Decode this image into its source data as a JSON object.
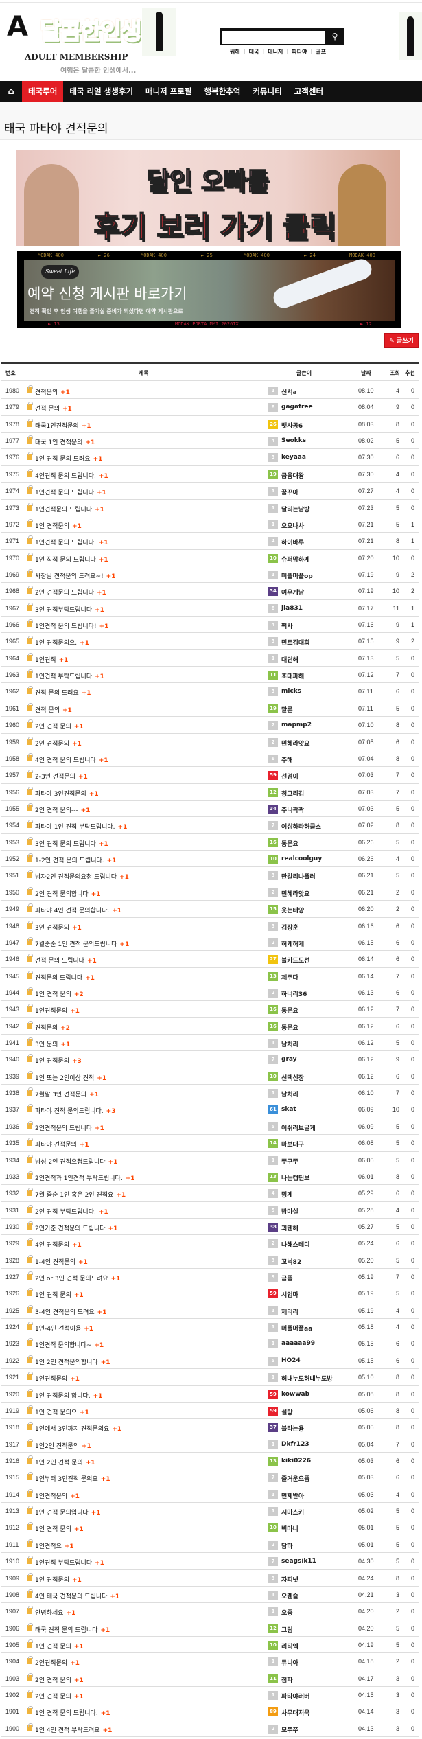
{
  "logo": {
    "mark": "A",
    "title": "달콤한인생",
    "subtitle": "ADULT MEMBERSHIP",
    "slogan": "여행은 달콤한 인생에서..."
  },
  "search": {
    "value": "",
    "placeholder": "",
    "icon": "search-icon",
    "links": [
      "뭐해",
      "태국",
      "매니저",
      "파타야",
      "골프"
    ]
  },
  "nav": {
    "home_icon": "home-icon",
    "items": [
      "태국투어",
      "태국 리얼 생생후기",
      "매니저 프로필",
      "행복한추억",
      "커뮤니티",
      "고객센터"
    ],
    "active": 0
  },
  "page_title": "태국 파타야 견적문의",
  "banner1": {
    "line1": "달인 오빠들",
    "line2": "후기 보러 가기 클릭"
  },
  "banner2": {
    "logo": "Sweet Life",
    "title": "예약 신청 게시판 바로가기",
    "subtitle": "견적 확인 후 인생 여행을 즐기실 준비가 되셨다면 예약 게시판으로",
    "film_top": [
      "MODAK 400",
      "► 26",
      "MODAK 400",
      "► 25",
      "MODAK 400",
      "► 24",
      "MODAK 400"
    ],
    "film_bottom": [
      "► 13",
      "MODAK PORTA MMI 2026TX",
      "► 12"
    ]
  },
  "write_button": "✎ 글쓰기",
  "table": {
    "headers": [
      "번호",
      "제목",
      "글쓴이",
      "날짜",
      "조회",
      "추천"
    ],
    "level_colors": {
      "default": "#cccccc",
      "green": "#8bc34a",
      "yellow": "#f1c40f",
      "purple": "#5b3f86",
      "red": "#e8222d",
      "blue": "#3a8fd9",
      "orange": "#f39c12"
    },
    "rows": [
      [
        "1980",
        "견적문의",
        "+1",
        "1",
        "신서a",
        "08.10",
        "4",
        "0"
      ],
      [
        "1979",
        "견적 문의",
        "+1",
        "8",
        "gagafree",
        "08.04",
        "9",
        "0"
      ],
      [
        "1978",
        "태국1인견적문의",
        "+1",
        "26",
        "뱃사공6",
        "08.03",
        "8",
        "0"
      ],
      [
        "1977",
        "태국 1인 견적문의",
        "+1",
        "4",
        "Seokks",
        "08.02",
        "5",
        "0"
      ],
      [
        "1976",
        "1인 견적 문의 드려요",
        "+1",
        "3",
        "keyaaa",
        "07.30",
        "6",
        "0"
      ],
      [
        "1975",
        "4인견적 문의 드립니다.",
        "+1",
        "19",
        "금융대왕",
        "07.30",
        "4",
        "0"
      ],
      [
        "1974",
        "1인견적 문의 드립니다",
        "+1",
        "1",
        "꿈꾸아",
        "07.27",
        "4",
        "0"
      ],
      [
        "1973",
        "1인견적문의 드립니다",
        "+1",
        "1",
        "달리는남방",
        "07.23",
        "5",
        "0"
      ],
      [
        "1972",
        "1인 견적문의",
        "+1",
        "1",
        "으으나사",
        "07.21",
        "5",
        "1"
      ],
      [
        "1971",
        "1인견적 문의 드립니다.",
        "+1",
        "4",
        "하이바루",
        "07.21",
        "8",
        "1"
      ],
      [
        "1970",
        "1인 직적 문의 드립니다",
        "+1",
        "10",
        "슈퍼맘하게",
        "07.20",
        "10",
        "0"
      ],
      [
        "1969",
        "사장님 견적문의 드려요~!",
        "+1",
        "1",
        "머플머플op",
        "07.19",
        "9",
        "2"
      ],
      [
        "1968",
        "2인 견적문의 드립니다",
        "+1",
        "34",
        "여우게남",
        "07.19",
        "10",
        "2"
      ],
      [
        "1967",
        "3인 견적부탁드립니다",
        "+1",
        "8",
        "jia831",
        "07.17",
        "11",
        "1"
      ],
      [
        "1966",
        "1인견적 문의 드립니다!",
        "+1",
        "4",
        "퍽사",
        "07.16",
        "9",
        "1"
      ],
      [
        "1965",
        "1인 견적문의요.",
        "+1",
        "3",
        "민트김대회",
        "07.15",
        "9",
        "2"
      ],
      [
        "1964",
        "1인견적",
        "+1",
        "1",
        "대던해",
        "07.13",
        "5",
        "0"
      ],
      [
        "1963",
        "1인견적 부탁드립니다",
        "+1",
        "11",
        "초대파해",
        "07.12",
        "7",
        "0"
      ],
      [
        "1962",
        "견적 문의 드려요",
        "+1",
        "3",
        "micks",
        "07.11",
        "6",
        "0"
      ],
      [
        "1961",
        "견적 문의",
        "+1",
        "19",
        "말론",
        "07.11",
        "5",
        "0"
      ],
      [
        "1960",
        "2인 견적 문의",
        "+1",
        "2",
        "mapmp2",
        "07.10",
        "8",
        "0"
      ],
      [
        "1959",
        "2인 견적문의",
        "+1",
        "2",
        "민혜라앗요",
        "07.05",
        "6",
        "0"
      ],
      [
        "1958",
        "4인 견적 문의 드립니다",
        "+1",
        "6",
        "주해",
        "07.04",
        "8",
        "0"
      ],
      [
        "1957",
        "2-3인 견적문의",
        "+1",
        "59",
        "선검이",
        "07.03",
        "7",
        "0"
      ],
      [
        "1956",
        "파타야 3인견적문의",
        "+1",
        "12",
        "청그리김",
        "07.03",
        "7",
        "0"
      ],
      [
        "1955",
        "2인 견적 문의---",
        "+1",
        "34",
        "주니곽곽",
        "07.03",
        "5",
        "0"
      ],
      [
        "1954",
        "파타야 1인 견적 부탁드립니다.",
        "+1",
        "7",
        "여심하라허클스",
        "07.02",
        "8",
        "0"
      ],
      [
        "1953",
        "3인 견적 문의 드립니다",
        "+1",
        "16",
        "동문요",
        "06.26",
        "5",
        "0"
      ],
      [
        "1952",
        "1-2인 견적 문의 드립니다.",
        "+1",
        "10",
        "realcoolguy",
        "06.26",
        "4",
        "0"
      ],
      [
        "1951",
        "남자2인 견적문의요청 드립니다",
        "+1",
        "3",
        "만갈리나플러",
        "06.21",
        "5",
        "0"
      ],
      [
        "1950",
        "2인 견적 문의합니다",
        "+1",
        "2",
        "민혜라앗요",
        "06.21",
        "2",
        "0"
      ],
      [
        "1949",
        "파타야 4인 견적 문의합니다.",
        "+1",
        "15",
        "웃는태양",
        "06.20",
        "2",
        "0"
      ],
      [
        "1948",
        "3인 견적문의",
        "+1",
        "3",
        "김장훈",
        "06.16",
        "6",
        "0"
      ],
      [
        "1947",
        "7월중순 1인 견적 문의드립니다",
        "+1",
        "2",
        "허케허케",
        "06.15",
        "6",
        "0"
      ],
      [
        "1946",
        "견적 문의 드립니다",
        "+1",
        "27",
        "블카드도선",
        "06.14",
        "6",
        "0"
      ],
      [
        "1945",
        "견적문의 드립니다",
        "+1",
        "13",
        "제주다",
        "06.14",
        "7",
        "0"
      ],
      [
        "1944",
        "1인 견적 문의",
        "+2",
        "2",
        "하너리36",
        "06.13",
        "6",
        "0"
      ],
      [
        "1943",
        "1인견적문의",
        "+1",
        "16",
        "동문요",
        "06.12",
        "7",
        "0"
      ],
      [
        "1942",
        "견적문의",
        "+2",
        "16",
        "동문요",
        "06.12",
        "6",
        "0"
      ],
      [
        "1941",
        "3인 문의",
        "+1",
        "1",
        "남처리",
        "06.12",
        "5",
        "0"
      ],
      [
        "1940",
        "1인 견적문의",
        "+3",
        "7",
        "gray",
        "06.12",
        "9",
        "0"
      ],
      [
        "1939",
        "1인 또는 2인이상 견적",
        "+1",
        "10",
        "선택신장",
        "06.12",
        "6",
        "0"
      ],
      [
        "1938",
        "7월말 3인 견적문의",
        "+1",
        "1",
        "남처리",
        "06.10",
        "7",
        "0"
      ],
      [
        "1937",
        "파타야 견적 문의드립니다.",
        "+3",
        "61",
        "skat",
        "06.09",
        "10",
        "0"
      ],
      [
        "1936",
        "2인견적문의 드립니다",
        "+1",
        "5",
        "어쉬러브굴게",
        "06.09",
        "5",
        "0"
      ],
      [
        "1935",
        "파타야 견적문의",
        "+1",
        "14",
        "마보대구",
        "06.08",
        "5",
        "0"
      ],
      [
        "1934",
        "남성 2인 견적요청드립니다",
        "+1",
        "1",
        "쭈구쭈",
        "06.05",
        "5",
        "0"
      ],
      [
        "1933",
        "2인견적과 1인견적 부탁드립니다.",
        "+1",
        "13",
        "나는캡틴보",
        "06.01",
        "8",
        "0"
      ],
      [
        "1932",
        "7월 중순 1인 혹은 2인 견적요",
        "+1",
        "4",
        "밍게",
        "05.29",
        "6",
        "0"
      ],
      [
        "1931",
        "2인 견적 부탁드립니다.",
        "+1",
        "5",
        "밤마실",
        "05.28",
        "4",
        "0"
      ],
      [
        "1930",
        "2인기준 견적문의 드립니다",
        "+1",
        "38",
        "괴텐해",
        "05.27",
        "5",
        "0"
      ],
      [
        "1929",
        "4인 견적문의",
        "+1",
        "2",
        "나해스테디",
        "05.24",
        "6",
        "0"
      ],
      [
        "1928",
        "1-4인 견적문의",
        "+1",
        "3",
        "꼬닉82",
        "05.20",
        "5",
        "0"
      ],
      [
        "1927",
        "2인 or 3인 견적 문의드려요",
        "+1",
        "9",
        "금뜸",
        "05.19",
        "7",
        "0"
      ],
      [
        "1926",
        "1인 견적 문의",
        "+1",
        "59",
        "시엄마",
        "05.19",
        "5",
        "0"
      ],
      [
        "1925",
        "3-4인 견적문의 드려요",
        "+1",
        "1",
        "제리리",
        "05.19",
        "4",
        "0"
      ],
      [
        "1924",
        "1인-4인 견적이용",
        "+1",
        "1",
        "머플머플aa",
        "05.18",
        "4",
        "0"
      ],
      [
        "1923",
        "1인견적 문의합니다~",
        "+1",
        "1",
        "aaaaaa99",
        "05.15",
        "6",
        "0"
      ],
      [
        "1922",
        "1인 2인 견적문의합니다",
        "+1",
        "5",
        "HO24",
        "05.15",
        "6",
        "0"
      ],
      [
        "1921",
        "1인견적문의",
        "+1",
        "1",
        "허내누도허내누도방",
        "05.10",
        "8",
        "0"
      ],
      [
        "1920",
        "1인 견적문의 합니다.",
        "+1",
        "59",
        "kowwab",
        "05.08",
        "8",
        "0"
      ],
      [
        "1919",
        "1인 견적 문의요",
        "+1",
        "59",
        "설탕",
        "05.06",
        "8",
        "0"
      ],
      [
        "1918",
        "1인에서 3인까지 견적문의요",
        "+1",
        "37",
        "블타는용",
        "05.05",
        "8",
        "0"
      ],
      [
        "1917",
        "1인2인 견적문의",
        "+1",
        "1",
        "Dkfr123",
        "05.04",
        "7",
        "0"
      ],
      [
        "1916",
        "1인 2인 견적 문의",
        "+1",
        "13",
        "kiki0226",
        "05.03",
        "6",
        "0"
      ],
      [
        "1915",
        "1인부터 3인견적 문의요",
        "+1",
        "7",
        "즐거운으뜸",
        "05.03",
        "6",
        "0"
      ],
      [
        "1914",
        "1인견적문의",
        "+1",
        "1",
        "면제받아",
        "05.03",
        "4",
        "0"
      ],
      [
        "1913",
        "1인 견적 문의입니다",
        "+1",
        "1",
        "시마스키",
        "05.02",
        "5",
        "0"
      ],
      [
        "1912",
        "1인 견적 문의",
        "+1",
        "10",
        "빅마니",
        "05.01",
        "5",
        "0"
      ],
      [
        "1911",
        "1인견적요",
        "+1",
        "2",
        "담하",
        "05.01",
        "5",
        "0"
      ],
      [
        "1910",
        "1인견적 부탁드립니다",
        "+1",
        "7",
        "seagsik11",
        "04.30",
        "5",
        "0"
      ],
      [
        "1909",
        "1인 견적문의",
        "+1",
        "3",
        "자피넷",
        "04.24",
        "8",
        "0"
      ],
      [
        "1908",
        "4인 태국 견적문의 드립니다",
        "+1",
        "1",
        "오렌슬",
        "04.21",
        "3",
        "0"
      ],
      [
        "1907",
        "안녕하세요",
        "+1",
        "1",
        "오중",
        "04.20",
        "2",
        "0"
      ],
      [
        "1906",
        "태국 견적 문의 드립니다",
        "+1",
        "12",
        "그림",
        "04.20",
        "5",
        "0"
      ],
      [
        "1905",
        "1인 견적 문의",
        "+1",
        "10",
        "리티엑",
        "04.19",
        "5",
        "0"
      ],
      [
        "1904",
        "2인견적문의",
        "+1",
        "1",
        "듀니아",
        "04.18",
        "2",
        "0"
      ],
      [
        "1903",
        "2인 견적 문의",
        "+1",
        "11",
        "점파",
        "04.17",
        "3",
        "0"
      ],
      [
        "1902",
        "2인 견적 문의",
        "+1",
        "1",
        "파타야러버",
        "04.15",
        "3",
        "0"
      ],
      [
        "1901",
        "1인 견적 문의 드립니다.",
        "+1",
        "89",
        "사무대저욱",
        "04.14",
        "3",
        "0"
      ],
      [
        "1900",
        "1인 4인 견적 부탁드려요",
        "+1",
        "2",
        "모쭈쭈",
        "04.13",
        "3",
        "0"
      ]
    ]
  }
}
